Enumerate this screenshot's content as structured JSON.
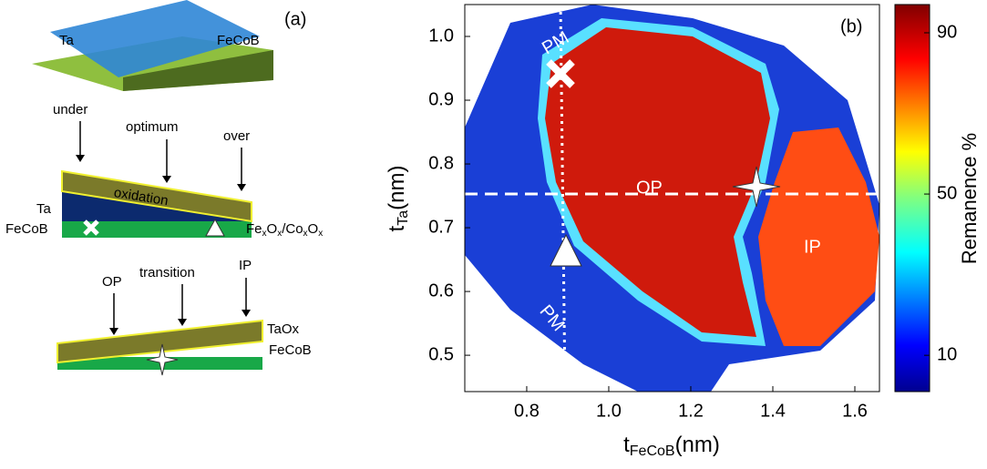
{
  "panel_a": {
    "label": "(a)",
    "top": {
      "layer_upper": "Ta",
      "layer_lower": "FeCoB"
    },
    "middle": {
      "arrows": [
        "under",
        "optimum",
        "over"
      ],
      "oxidation": "oxidation",
      "layer_upper": "Ta",
      "layer_lower": "FeCoB",
      "oxide": [
        "Fe",
        "x",
        "O",
        "x",
        "/Co",
        "x",
        "O",
        "x"
      ]
    },
    "bottom": {
      "arrows": [
        "OP",
        "transition",
        "IP"
      ],
      "layer_upper": "TaOx",
      "layer_lower": "FeCoB"
    }
  },
  "panel_b": {
    "label": "(b)",
    "xlabel": {
      "main": "t",
      "sub": "FeCoB",
      "unit": "(nm)"
    },
    "ylabel": {
      "main": "t",
      "sub": "Ta",
      "unit": "(nm)"
    },
    "xlim": [
      0.649,
      1.66
    ],
    "ylim": [
      0.443,
      1.05
    ],
    "xticks": [
      0.8,
      {
        "value": 1,
        "label": "1.0"
      },
      1.2,
      1.4,
      1.6
    ],
    "yticks": [
      0.5,
      0.6,
      0.7,
      0.8,
      0.9,
      {
        "value": 1,
        "label": "1.0"
      }
    ],
    "colorbar": {
      "label": "Remanence %",
      "lim": [
        1,
        97
      ],
      "ticks": [
        10,
        50,
        90
      ]
    },
    "annotations": [
      "PM",
      "PM",
      "OP",
      "IP"
    ]
  }
}
